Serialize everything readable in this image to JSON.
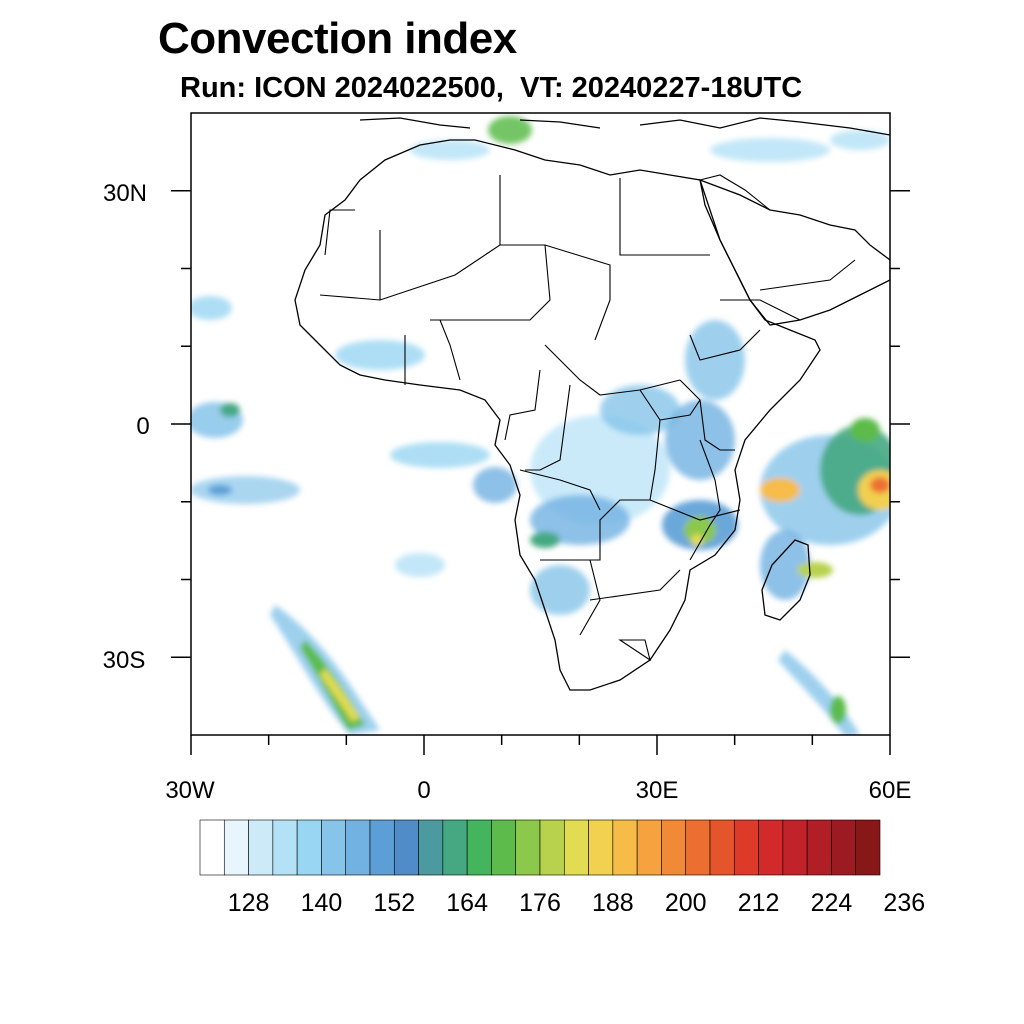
{
  "title": "Convection index",
  "subtitle": "Run: ICON 2024022500,  VT: 20240227-18UTC",
  "map": {
    "projection": "cylindrical-equidistant",
    "lon_range": [
      -30,
      60
    ],
    "lat_range": [
      -40,
      40
    ],
    "lat_ticks": [
      {
        "lat": 30,
        "label": "30N"
      },
      {
        "lat": 0,
        "label": "0"
      },
      {
        "lat": -30,
        "label": "30S"
      }
    ],
    "lon_ticks": [
      {
        "lon": -30,
        "label": "30W"
      },
      {
        "lon": 0,
        "label": "0"
      },
      {
        "lon": 30,
        "label": "30E"
      },
      {
        "lon": 60,
        "label": "60E"
      }
    ],
    "region": "Africa",
    "field": "convection index (shaded)"
  },
  "colorbar": {
    "colors": [
      "#ffffff",
      "#e8f5fc",
      "#cdeaf8",
      "#b3e1f6",
      "#98d6f3",
      "#86c4ea",
      "#72b2e2",
      "#5b9fd6",
      "#4f8cc8",
      "#4a9aa0",
      "#45a882",
      "#44b55c",
      "#5cbb4a",
      "#8cc84c",
      "#b8d24e",
      "#e2dc52",
      "#f2d050",
      "#f7bc48",
      "#f5a23f",
      "#f08a37",
      "#ec6e30",
      "#e5552c",
      "#de3a2a",
      "#d22a2a",
      "#c2222a",
      "#b01e26",
      "#9c1a22",
      "#881818"
    ],
    "labels": [
      "128",
      "140",
      "152",
      "164",
      "176",
      "188",
      "200",
      "212",
      "224",
      "236"
    ]
  }
}
